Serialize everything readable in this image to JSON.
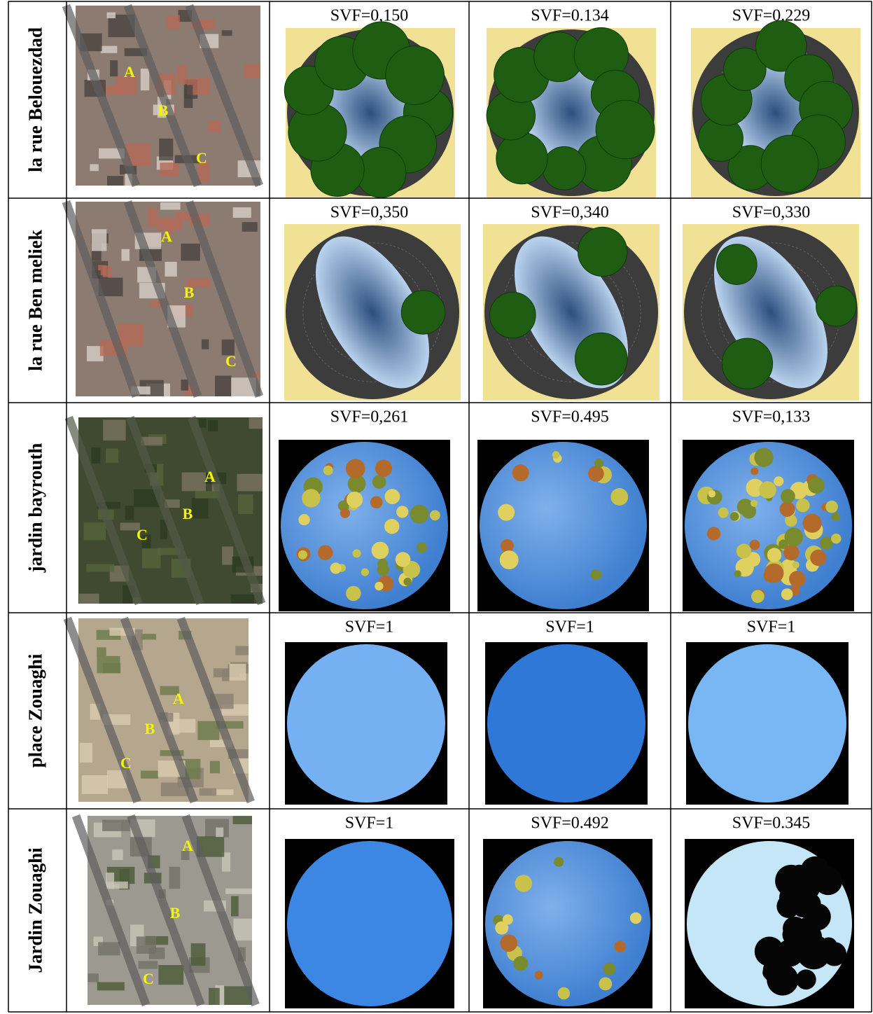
{
  "rows": [
    {
      "label": "la rue Belouezdad",
      "points": [
        "A",
        "B",
        "C"
      ],
      "svf": [
        "SVF=0,150",
        "SVF=0.134",
        "SVF=0.229"
      ]
    },
    {
      "label": "la rue  Ben meliek",
      "points": [
        "A",
        "B",
        "C"
      ],
      "svf": [
        "SVF=0,350",
        "SVF=0,340",
        "SVF=0,330"
      ]
    },
    {
      "label": "jardin bayrouth",
      "points": [
        "A",
        "B",
        "C"
      ],
      "svf": [
        "SVF=0,261",
        "SVF=0.495",
        "SVF=0,133"
      ]
    },
    {
      "label": "place Zouaghi",
      "points": [
        "A",
        "B",
        "C"
      ],
      "svf": [
        "SVF=1",
        "SVF=1",
        "SVF=1"
      ]
    },
    {
      "label": "Jardin Zouaghi",
      "points": [
        "A",
        "B",
        "C"
      ],
      "svf": [
        "SVF=1",
        "SVF=0.492",
        "SVF=0.345"
      ]
    }
  ]
}
